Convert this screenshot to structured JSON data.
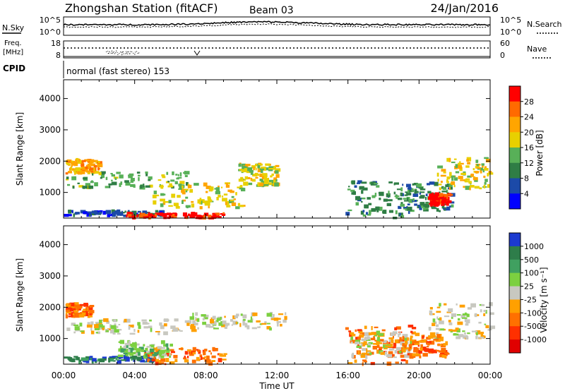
{
  "header": {
    "station": "Zhongshan Station (fitACF)",
    "beam": "Beam 03",
    "date": "24/Jan/2016"
  },
  "noise_panel": {
    "left_label": "N.Sky",
    "right_label": "N.Search",
    "left_ticks": [
      "10^5",
      "10^0"
    ],
    "right_ticks": [
      "10^5",
      "10^0"
    ]
  },
  "freq_panel": {
    "left_label_1": "Freq.",
    "left_label_2": "[MHz]",
    "left_ticks": [
      "18",
      "8"
    ],
    "right_label": "Nave",
    "right_ticks": [
      "60",
      "0"
    ]
  },
  "cpid": {
    "label": "CPID",
    "text": "normal (fast stereo) 153"
  },
  "x_axis": {
    "title": "Time UT",
    "ticks": [
      "00:00",
      "04:00",
      "08:00",
      "12:00",
      "16:00",
      "20:00",
      "00:00"
    ]
  },
  "chart_data": [
    {
      "type": "heatmap",
      "title": "",
      "xlabel": "Time UT",
      "ylabel": "Slant Range [km]",
      "colorbar_label": "Power [dB]",
      "colorbar_ticks": [
        "28",
        "24",
        "20",
        "16",
        "12",
        "8",
        "4"
      ],
      "colorbar_colors": [
        "#ff0000",
        "#ff6a00",
        "#ffa500",
        "#e8d000",
        "#58b058",
        "#2f7d45",
        "#1c4aa8",
        "#0000ff"
      ],
      "y_ticks": [
        "4000",
        "3000",
        "2000",
        "1000"
      ],
      "ylim": [
        180,
        4600
      ],
      "xlim_hours": [
        0,
        24
      ],
      "scatter_regions": [
        {
          "t0": 0.0,
          "t1": 5.5,
          "r0": 250,
          "r1": 400,
          "level": 6
        },
        {
          "t0": 3.5,
          "t1": 9.0,
          "r0": 180,
          "r1": 330,
          "level": 0
        },
        {
          "t0": 0.1,
          "t1": 7.0,
          "r0": 1150,
          "r1": 1650,
          "level": 4
        },
        {
          "t0": 0.1,
          "t1": 2.0,
          "r0": 1600,
          "r1": 2050,
          "level": 2
        },
        {
          "t0": 5.0,
          "t1": 10.0,
          "r0": 500,
          "r1": 1300,
          "level": 3
        },
        {
          "t0": 9.8,
          "t1": 12.0,
          "r0": 1200,
          "r1": 1900,
          "level": 3
        },
        {
          "t0": 15.8,
          "t1": 19.5,
          "r0": 180,
          "r1": 1350,
          "level": 5
        },
        {
          "t0": 19.2,
          "t1": 21.8,
          "r0": 400,
          "r1": 1300,
          "level": 5
        },
        {
          "t0": 20.5,
          "t1": 21.6,
          "r0": 600,
          "r1": 950,
          "level": 0
        },
        {
          "t0": 21.0,
          "t1": 24.0,
          "r0": 1100,
          "r1": 2100,
          "level": 3
        }
      ]
    },
    {
      "type": "heatmap",
      "title": "",
      "xlabel": "Time UT",
      "ylabel": "Slant Range [km]",
      "colorbar_label": "Velocity [m s⁻¹]",
      "colorbar_ticks": [
        "1000",
        "500",
        "100",
        "25",
        "-25",
        "-100",
        "-500",
        "-1000"
      ],
      "colorbar_colors": [
        "#1c3ad0",
        "#2e7d4a",
        "#40a060",
        "#7cd040",
        "#c8c8c0",
        "#ffa000",
        "#ff7000",
        "#ff3000",
        "#e00000"
      ],
      "y_ticks": [
        "4000",
        "3000",
        "2000",
        "1000"
      ],
      "ylim": [
        180,
        4600
      ],
      "xlim_hours": [
        0,
        24
      ],
      "scatter_regions": [
        {
          "t0": 0.0,
          "t1": 5.0,
          "r0": 250,
          "r1": 420,
          "level": 1
        },
        {
          "t0": 4.5,
          "t1": 9.0,
          "r0": 180,
          "r1": 700,
          "level": 6
        },
        {
          "t0": 0.1,
          "t1": 7.5,
          "r0": 1150,
          "r1": 1600,
          "level": 4
        },
        {
          "t0": 0.1,
          "t1": 1.5,
          "r0": 1700,
          "r1": 2100,
          "level": 6
        },
        {
          "t0": 7.0,
          "t1": 12.5,
          "r0": 1300,
          "r1": 1800,
          "level": 4
        },
        {
          "t0": 3.0,
          "t1": 6.0,
          "r0": 400,
          "r1": 900,
          "level": 3
        },
        {
          "t0": 15.8,
          "t1": 20.0,
          "r0": 180,
          "r1": 1400,
          "level": 6
        },
        {
          "t0": 16.0,
          "t1": 19.5,
          "r0": 400,
          "r1": 1200,
          "level": 4
        },
        {
          "t0": 20.5,
          "t1": 24.0,
          "r0": 1000,
          "r1": 2100,
          "level": 4
        },
        {
          "t0": 19.0,
          "t1": 21.5,
          "r0": 400,
          "r1": 1100,
          "level": 6
        }
      ]
    }
  ]
}
